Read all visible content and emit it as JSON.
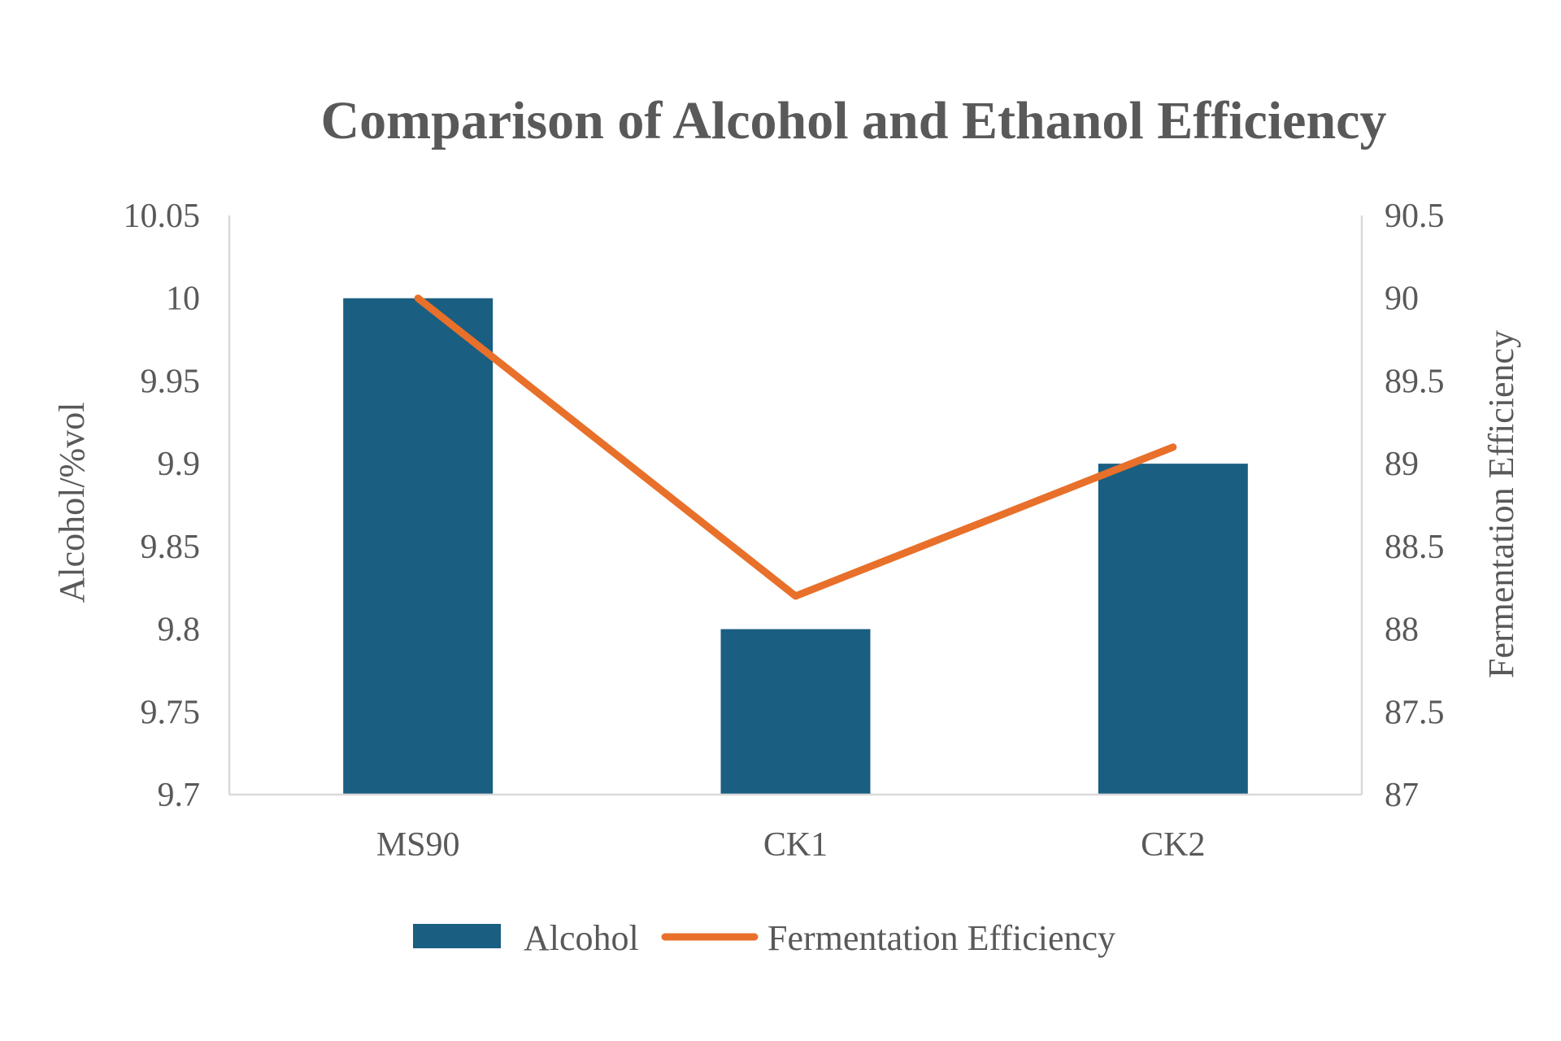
{
  "chart_data": {
    "type": "bar",
    "title": "Comparison of Alcohol and Ethanol Efficiency",
    "categories": [
      "MS90",
      "CK1",
      "CK2"
    ],
    "series": [
      {
        "name": "Alcohol",
        "type": "bar",
        "axis": "left",
        "values": [
          10.0,
          9.8,
          9.9
        ],
        "color": "#1a5e82"
      },
      {
        "name": "Fermentation Efficiency",
        "type": "line",
        "axis": "right",
        "values": [
          90.0,
          88.2,
          89.1
        ],
        "color": "#e8702a"
      }
    ],
    "ylabel": "Alcohol/%vol",
    "y2label": "Fermentation Efficiency",
    "ylim": [
      9.7,
      10.05
    ],
    "y2lim": [
      87,
      90.5
    ],
    "yticks": [
      "9.7",
      "9.75",
      "9.8",
      "9.85",
      "9.9",
      "9.95",
      "10",
      "10.05"
    ],
    "y2ticks": [
      "87",
      "87.5",
      "88",
      "88.5",
      "89",
      "89.5",
      "90",
      "90.5"
    ],
    "grid": false,
    "legend_position": "bottom"
  }
}
